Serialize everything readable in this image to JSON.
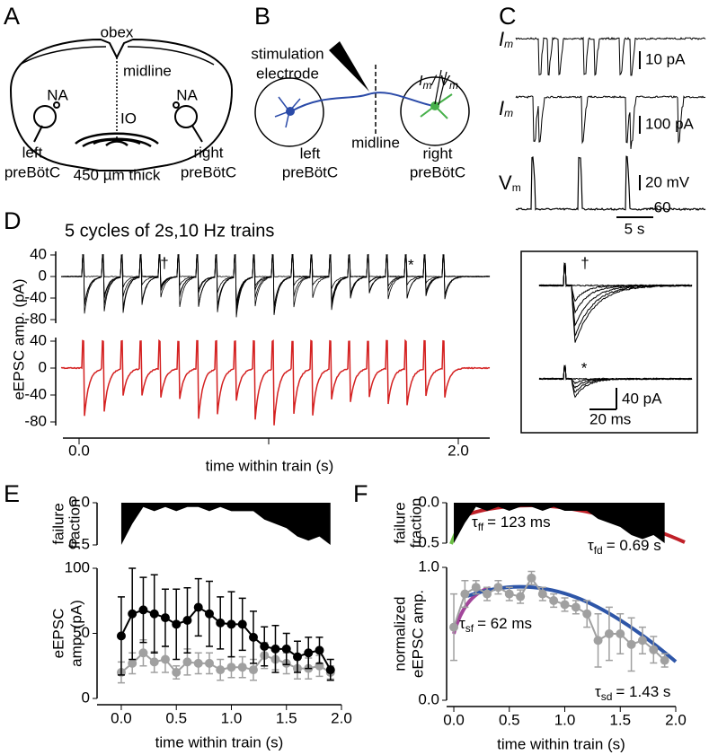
{
  "panel_labels": [
    "A",
    "B",
    "C",
    "D",
    "E",
    "F"
  ],
  "panel_a": {
    "obex": "obex",
    "midline": "midline",
    "na_left": "NA",
    "na_right": "NA",
    "io": "IO",
    "left": [
      "left",
      "preBötC"
    ],
    "right": [
      "right",
      "preBötC"
    ],
    "thickness": "450 µm thick"
  },
  "panel_b": {
    "electrode": [
      "stimulation",
      "electrode"
    ],
    "left": [
      "left",
      "preBötC"
    ],
    "midline": "midline",
    "right": [
      "right",
      "preBötC"
    ],
    "recording": [
      "I",
      "m",
      "/ V",
      "m"
    ]
  },
  "panel_c": {
    "traces": [
      {
        "symbol": "I",
        "sub": "m",
        "scale": "10 pA"
      },
      {
        "symbol": "I",
        "sub": "m",
        "scale": "100 pA"
      },
      {
        "symbol": "V",
        "sub": "m",
        "scale": "20 mV",
        "baseline": -60
      }
    ],
    "time_scale": "5 s"
  },
  "panel_d": {
    "title": "5 cycles of 2s,10 Hz trains",
    "y_label": "eEPSC amp. (pA)",
    "x_label": "time within train (s)",
    "yticks_top": [
      40,
      0,
      -40,
      -80
    ],
    "yticks_bottom": [
      40,
      0,
      -40,
      -80
    ],
    "xticks": [
      {
        "value": 0,
        "label": "0.0"
      },
      {
        "value": 2,
        "label": "2.0"
      }
    ],
    "marks": [
      "†",
      "*"
    ],
    "inset": {
      "marks": [
        "†",
        "*"
      ],
      "amp_scale": "40 pA",
      "time_scale": "20 ms"
    }
  },
  "chart_data": [
    {
      "type": "area",
      "y_label": [
        "failure",
        "fraction"
      ],
      "x": [
        0,
        0.1,
        0.2,
        0.3,
        0.4,
        0.5,
        0.6,
        0.7,
        0.8,
        0.9,
        1.0,
        1.1,
        1.2,
        1.3,
        1.4,
        1.5,
        1.6,
        1.7,
        1.8,
        1.9
      ],
      "values": [
        0.5,
        0.25,
        0.05,
        0.1,
        0.05,
        0.1,
        0.05,
        0.05,
        0.1,
        0.05,
        0.1,
        0.1,
        0.1,
        0.2,
        0.25,
        0.3,
        0.4,
        0.45,
        0.4,
        0.5
      ],
      "color": "#000000",
      "xlim": [
        -0.22,
        2.0
      ],
      "ylim": [
        0.5,
        0
      ],
      "yticks": [
        {
          "value": 0,
          "label": "0.0"
        },
        {
          "value": 0.5,
          "label": "0.5"
        }
      ]
    },
    {
      "type": "line",
      "y_label": [
        "eEPSC",
        "amp. (pA)"
      ],
      "x_label": "time within train (s)",
      "x": [
        0,
        0.1,
        0.2,
        0.3,
        0.4,
        0.5,
        0.6,
        0.7,
        0.8,
        0.9,
        1.0,
        1.1,
        1.2,
        1.3,
        1.4,
        1.5,
        1.6,
        1.7,
        1.8,
        1.9
      ],
      "series": [
        {
          "color": "#000000",
          "values": [
            48,
            65,
            68,
            65,
            62,
            57,
            60,
            70,
            65,
            58,
            57,
            57,
            47,
            40,
            38,
            38,
            32,
            35,
            37,
            22
          ],
          "errors": [
            30,
            35,
            25,
            30,
            22,
            27,
            25,
            22,
            25,
            20,
            25,
            20,
            20,
            15,
            18,
            12,
            12,
            12,
            10,
            8
          ]
        },
        {
          "color": "#a0a0a0",
          "values": [
            20,
            27,
            35,
            28,
            30,
            20,
            28,
            27,
            27,
            22,
            24,
            24,
            22,
            33,
            30,
            27,
            23,
            23,
            25,
            20
          ],
          "errors": [
            8,
            8,
            10,
            8,
            10,
            5,
            10,
            8,
            8,
            8,
            8,
            8,
            8,
            10,
            8,
            8,
            8,
            8,
            8,
            5
          ]
        }
      ],
      "xlim": [
        -0.22,
        2.0
      ],
      "xticks": [
        {
          "value": 0,
          "label": "0.0"
        },
        {
          "value": 0.5,
          "label": "0.5"
        },
        {
          "value": 1,
          "label": "1.0"
        },
        {
          "value": 1.5,
          "label": "1.5"
        },
        {
          "value": 2,
          "label": "2.0"
        }
      ],
      "ylim": [
        0,
        100
      ],
      "yticks": [
        0,
        50,
        100
      ]
    },
    {
      "type": "area",
      "y_label": [
        "failure",
        "fraction"
      ],
      "x": [
        0,
        0.1,
        0.2,
        0.3,
        0.4,
        0.5,
        0.6,
        0.7,
        0.8,
        0.9,
        1.0,
        1.1,
        1.2,
        1.3,
        1.4,
        1.5,
        1.6,
        1.7,
        1.8,
        1.9
      ],
      "values": [
        0.5,
        0.25,
        0.05,
        0.1,
        0.05,
        0.1,
        0.05,
        0.05,
        0.1,
        0.05,
        0.1,
        0.1,
        0.1,
        0.2,
        0.25,
        0.3,
        0.4,
        0.45,
        0.4,
        0.5
      ],
      "color": "#000000",
      "xlim": [
        -0.065,
        2.0
      ],
      "ylim": [
        0.5,
        0
      ],
      "yticks": [
        {
          "value": 0,
          "label": "0.0"
        },
        {
          "value": 0.5,
          "label": "0.5"
        }
      ],
      "annotations": [
        {
          "symbol": "τ",
          "sub": "ff",
          "text": "= 123 ms"
        },
        {
          "symbol": "τ",
          "sub": "fd",
          "text": "= 0.69 s"
        }
      ]
    },
    {
      "type": "line",
      "y_label": [
        "normalized",
        "eEPSC amp."
      ],
      "x_label": "time within train (s)",
      "x": [
        0,
        0.1,
        0.2,
        0.3,
        0.4,
        0.5,
        0.6,
        0.7,
        0.8,
        0.9,
        1.0,
        1.1,
        1.2,
        1.3,
        1.4,
        1.5,
        1.6,
        1.7,
        1.8,
        1.9
      ],
      "series": [
        {
          "color": "#a0a0a0",
          "values": [
            0.55,
            0.8,
            0.85,
            0.8,
            0.85,
            0.8,
            0.78,
            0.92,
            0.8,
            0.75,
            0.72,
            0.7,
            0.65,
            0.45,
            0.5,
            0.5,
            0.42,
            0.45,
            0.38,
            0.3
          ],
          "errors": [
            0.25,
            0.1,
            0.05,
            0.05,
            0.05,
            0.05,
            0.05,
            0.05,
            0.05,
            0.05,
            0.05,
            0.05,
            0.1,
            0.2,
            0.2,
            0.15,
            0.2,
            0.1,
            0.1,
            0.05
          ]
        }
      ],
      "xlim": [
        -0.065,
        2.0
      ],
      "xticks": [
        {
          "value": 0,
          "label": "0.0"
        },
        {
          "value": 0.5,
          "label": "0.5"
        },
        {
          "value": 1,
          "label": "1.0"
        },
        {
          "value": 1.5,
          "label": "1.5"
        },
        {
          "value": 2,
          "label": "2.0"
        }
      ],
      "ylim": [
        0,
        1
      ],
      "yticks": [
        {
          "value": 0,
          "label": "0.0"
        },
        {
          "value": 1,
          "label": "1.0"
        }
      ],
      "annotations": [
        {
          "symbol": "τ",
          "sub": "sf",
          "text": "= 62 ms"
        },
        {
          "symbol": "τ",
          "sub": "sd",
          "text": "= 1.43 s"
        }
      ]
    }
  ]
}
